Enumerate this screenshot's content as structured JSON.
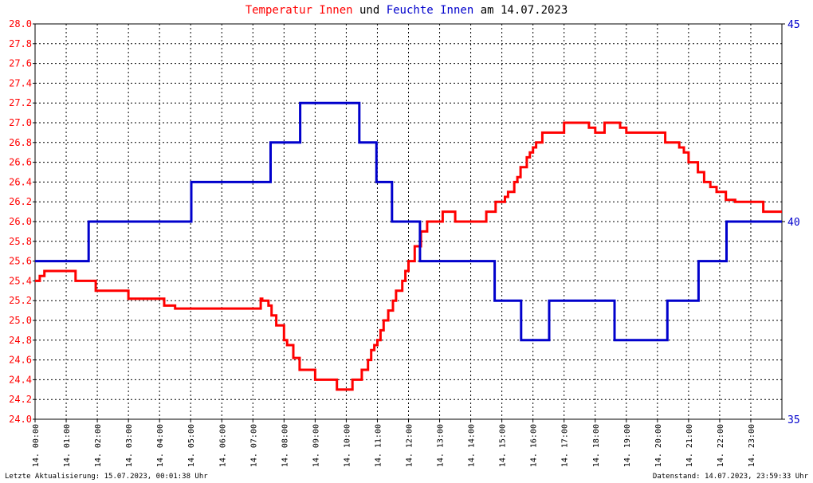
{
  "title": {
    "part1": "Temperatur Innen",
    "part2": " und ",
    "part3": "Feuchte Innen",
    "part4": " am 14.07.2023",
    "color1": "#ff0000",
    "color3": "#0000cc"
  },
  "footer": {
    "left": "Letzte Aktualisierung: 15.07.2023, 00:01:38 Uhr",
    "right": "Datenstand: 14.07.2023, 23:59:33 Uhr"
  },
  "chart_data": {
    "type": "line",
    "title": "Temperatur Innen und Feuchte Innen am 14.07.2023",
    "grid": true,
    "x": {
      "range": [
        "00:00",
        "24:00"
      ],
      "tick_labels": [
        "14. 00:00",
        "14. 01:00",
        "14. 02:00",
        "14. 03:00",
        "14. 04:00",
        "14. 05:00",
        "14. 06:00",
        "14. 07:00",
        "14. 08:00",
        "14. 09:00",
        "14. 10:00",
        "14. 11:00",
        "14. 12:00",
        "14. 13:00",
        "14. 14:00",
        "14. 15:00",
        "14. 16:00",
        "14. 17:00",
        "14. 18:00",
        "14. 19:00",
        "14. 20:00",
        "14. 21:00",
        "14. 22:00",
        "14. 23:00"
      ]
    },
    "y_left": {
      "range": [
        24.0,
        28.0
      ],
      "tick_labels": [
        "24.0",
        "24.2",
        "24.4",
        "24.6",
        "24.8",
        "25.0",
        "25.2",
        "25.4",
        "25.6",
        "25.8",
        "26.0",
        "26.2",
        "26.4",
        "26.6",
        "26.8",
        "27.0",
        "27.2",
        "27.4",
        "27.6",
        "27.8",
        "28.0"
      ],
      "color": "#ff0000"
    },
    "y_right": {
      "range": [
        35,
        45
      ],
      "tick_labels": [
        "35",
        "40",
        "45"
      ],
      "color": "#0000cc"
    },
    "series": [
      {
        "name": "Temperatur Innen",
        "axis": "left",
        "color": "#ff0000",
        "x_hours": [
          0.0,
          0.15,
          0.3,
          1.25,
          1.3,
          1.9,
          1.95,
          2.8,
          3.0,
          4.0,
          4.15,
          4.5,
          6.0,
          7.25,
          7.3,
          7.5,
          7.6,
          7.75,
          8.0,
          8.1,
          8.3,
          8.5,
          9.0,
          9.2,
          9.7,
          9.9,
          10.2,
          10.4,
          10.5,
          10.7,
          10.8,
          10.9,
          11.0,
          11.1,
          11.2,
          11.35,
          11.5,
          11.6,
          11.8,
          11.9,
          12.0,
          12.2,
          12.4,
          12.6,
          12.9,
          13.1,
          13.5,
          14.25,
          14.5,
          14.8,
          15.1,
          15.2,
          15.4,
          15.5,
          15.6,
          15.8,
          15.9,
          16.0,
          16.1,
          16.3,
          17.0,
          17.4,
          17.8,
          18.0,
          18.3,
          18.8,
          19.0,
          19.3,
          20.0,
          20.25,
          20.7,
          20.85,
          21.0,
          21.1,
          21.3,
          21.5,
          21.7,
          21.9,
          22.2,
          22.3,
          22.5,
          23.2,
          23.4,
          24.0
        ],
        "values": [
          25.4,
          25.45,
          25.5,
          25.5,
          25.4,
          25.4,
          25.3,
          25.3,
          25.22,
          25.22,
          25.15,
          25.12,
          25.12,
          25.22,
          25.2,
          25.15,
          25.05,
          24.95,
          24.8,
          24.75,
          24.62,
          24.5,
          24.4,
          24.4,
          24.3,
          24.3,
          24.4,
          24.4,
          24.5,
          24.6,
          24.7,
          24.75,
          24.8,
          24.9,
          25.0,
          25.1,
          25.2,
          25.3,
          25.4,
          25.5,
          25.6,
          25.75,
          25.9,
          26.0,
          26.0,
          26.1,
          26.0,
          26.0,
          26.1,
          26.2,
          26.25,
          26.3,
          26.4,
          26.45,
          26.55,
          26.65,
          26.7,
          26.75,
          26.8,
          26.9,
          27.0,
          27.0,
          26.95,
          26.9,
          27.0,
          26.95,
          26.9,
          26.9,
          26.9,
          26.8,
          26.75,
          26.7,
          26.6,
          26.6,
          26.5,
          26.4,
          26.35,
          26.3,
          26.22,
          26.22,
          26.2,
          26.2,
          26.1,
          26.1
        ]
      },
      {
        "name": "Feuchte Innen",
        "axis": "right",
        "color": "#0000cc",
        "x_hours": [
          0.0,
          1.7,
          1.72,
          5.0,
          5.02,
          7.55,
          7.57,
          8.5,
          8.52,
          10.4,
          10.42,
          10.95,
          10.97,
          11.45,
          11.47,
          12.35,
          12.37,
          14.75,
          14.77,
          15.6,
          15.62,
          16.0,
          16.02,
          16.5,
          16.52,
          18.6,
          18.62,
          19.2,
          19.22,
          20.3,
          20.32,
          21.3,
          21.32,
          22.2,
          22.22,
          24.0
        ],
        "values": [
          39.0,
          39.0,
          40.0,
          40.0,
          41.0,
          41.0,
          42.0,
          42.0,
          43.0,
          43.0,
          42.0,
          42.0,
          41.0,
          41.0,
          40.0,
          40.0,
          39.0,
          39.0,
          38.0,
          38.0,
          37.0,
          37.0,
          37.0,
          37.0,
          38.0,
          38.0,
          37.0,
          37.0,
          37.0,
          37.0,
          38.0,
          38.0,
          39.0,
          39.0,
          40.0,
          40.0
        ]
      }
    ]
  }
}
